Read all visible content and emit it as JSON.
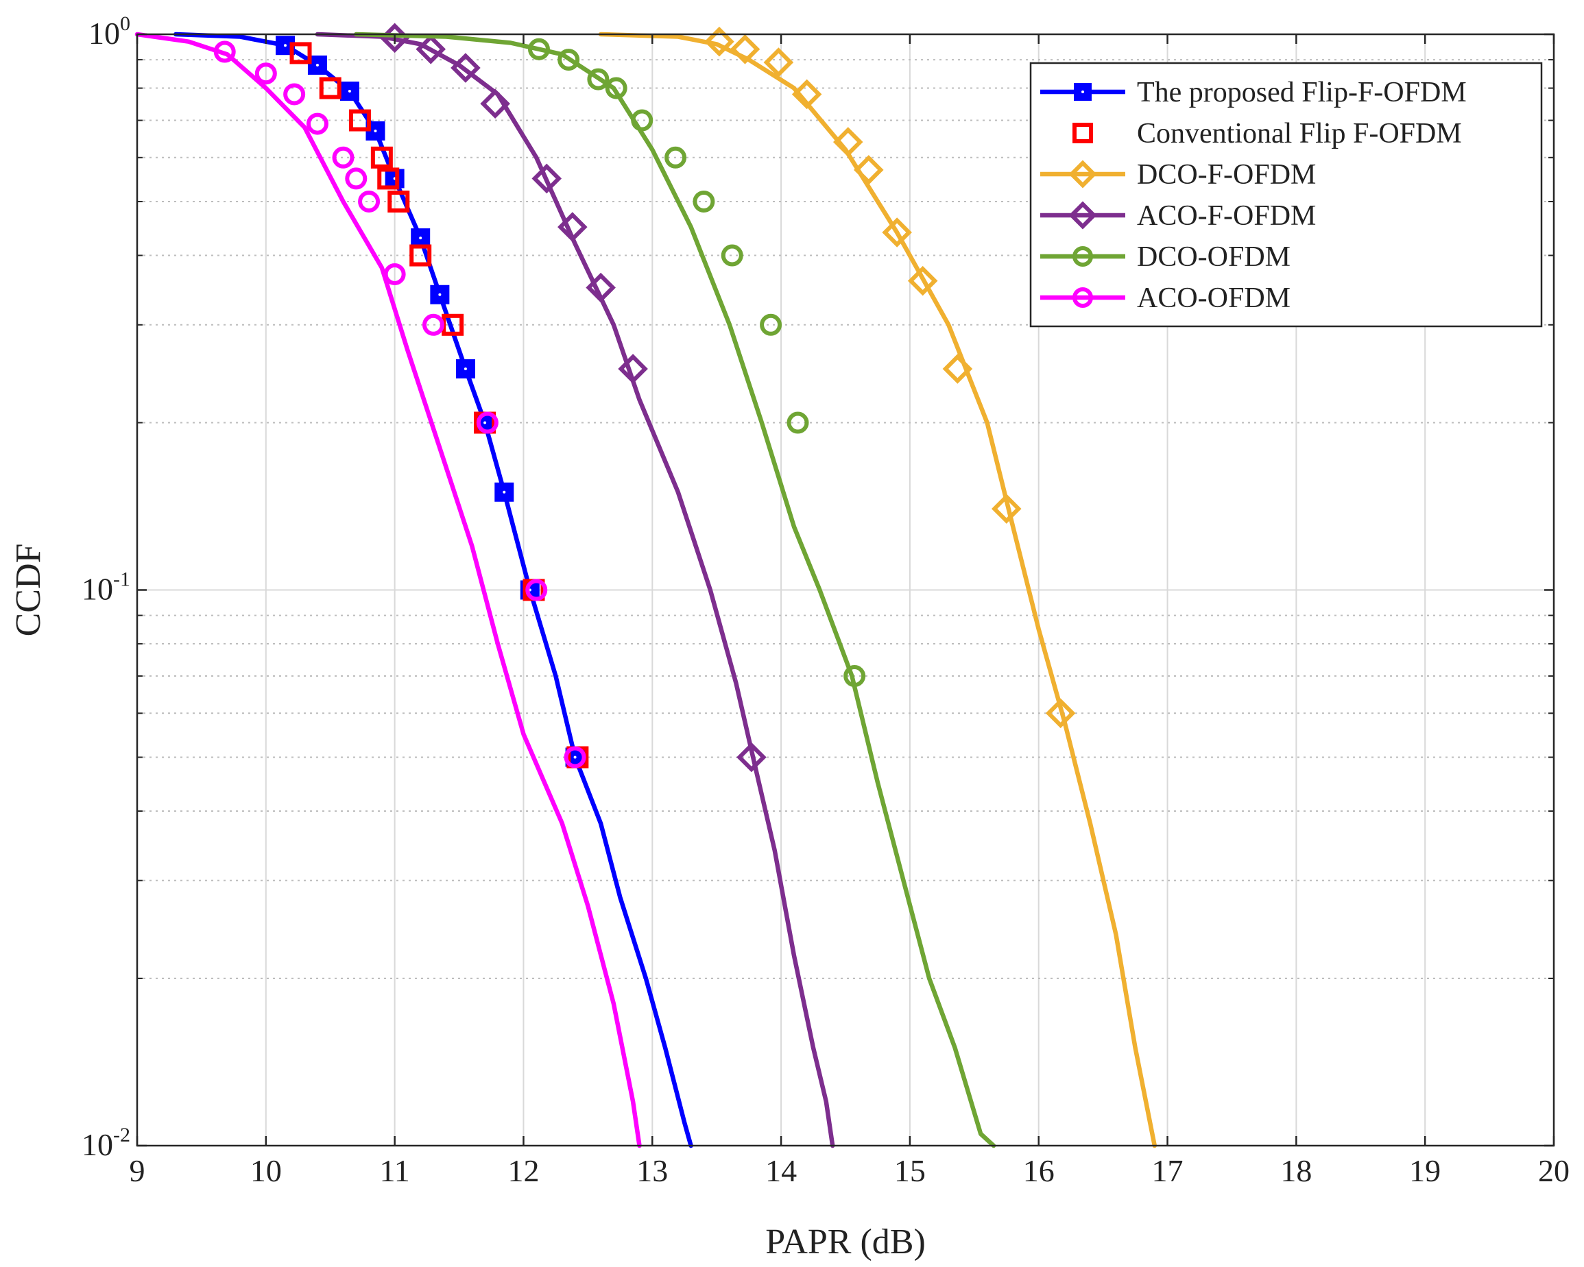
{
  "chart_data": {
    "type": "line",
    "title": "",
    "xlabel": "PAPR (dB)",
    "ylabel": "CCDF",
    "xlim": [
      9,
      20
    ],
    "ylim": [
      0.01,
      1
    ],
    "yscale": "log",
    "grid": true,
    "x_ticks": [
      "9",
      "10",
      "11",
      "12",
      "13",
      "14",
      "15",
      "16",
      "17",
      "18",
      "19",
      "20"
    ],
    "y_ticks": [
      {
        "value": 1,
        "base": "10",
        "exp": "0"
      },
      {
        "value": 0.1,
        "base": "10",
        "exp": "-1"
      },
      {
        "value": 0.01,
        "base": "10",
        "exp": "-2"
      }
    ],
    "legend_position": "top-right",
    "series": [
      {
        "name": "The proposed Flip-F-OFDM",
        "color": "#0000ff",
        "marker": "square",
        "line": true,
        "points": [
          [
            9.3,
            1.0
          ],
          [
            9.8,
            0.99
          ],
          [
            10.15,
            0.955
          ],
          [
            10.4,
            0.88
          ],
          [
            10.65,
            0.79
          ],
          [
            10.85,
            0.67
          ],
          [
            11.0,
            0.55
          ],
          [
            11.2,
            0.43
          ],
          [
            11.35,
            0.34
          ],
          [
            11.55,
            0.25
          ],
          [
            11.7,
            0.2
          ],
          [
            11.85,
            0.15
          ],
          [
            12.05,
            0.1
          ],
          [
            12.25,
            0.07
          ],
          [
            12.4,
            0.05
          ],
          [
            12.6,
            0.038
          ],
          [
            12.75,
            0.028
          ],
          [
            12.95,
            0.02
          ],
          [
            13.1,
            0.015
          ],
          [
            13.25,
            0.011
          ],
          [
            13.3,
            0.01
          ]
        ],
        "markers": [
          [
            10.15,
            0.955
          ],
          [
            10.4,
            0.88
          ],
          [
            10.65,
            0.79
          ],
          [
            10.85,
            0.67
          ],
          [
            11.0,
            0.55
          ],
          [
            11.2,
            0.43
          ],
          [
            11.35,
            0.34
          ],
          [
            11.55,
            0.25
          ],
          [
            11.7,
            0.2
          ],
          [
            11.85,
            0.15
          ],
          [
            12.05,
            0.1
          ],
          [
            12.4,
            0.05
          ]
        ]
      },
      {
        "name": "Conventional Flip F-OFDM",
        "color": "#ff0000",
        "marker": "square-open",
        "line": false,
        "points": [],
        "markers": [
          [
            10.27,
            0.925
          ],
          [
            10.5,
            0.8
          ],
          [
            10.73,
            0.7
          ],
          [
            10.9,
            0.6
          ],
          [
            10.95,
            0.55
          ],
          [
            11.03,
            0.5
          ],
          [
            11.2,
            0.4
          ],
          [
            11.45,
            0.3
          ],
          [
            11.7,
            0.2
          ],
          [
            12.08,
            0.1
          ],
          [
            12.42,
            0.05
          ]
        ]
      },
      {
        "name": "DCO-F-OFDM",
        "color": "#f0b030",
        "marker": "diamond",
        "line": true,
        "points": [
          [
            12.6,
            1.0
          ],
          [
            13.2,
            0.99
          ],
          [
            13.5,
            0.96
          ],
          [
            13.75,
            0.9
          ],
          [
            14.1,
            0.8
          ],
          [
            14.5,
            0.62
          ],
          [
            14.9,
            0.44
          ],
          [
            15.3,
            0.3
          ],
          [
            15.6,
            0.2
          ],
          [
            15.8,
            0.13
          ],
          [
            16.0,
            0.085
          ],
          [
            16.2,
            0.058
          ],
          [
            16.4,
            0.038
          ],
          [
            16.6,
            0.024
          ],
          [
            16.75,
            0.015
          ],
          [
            16.9,
            0.01
          ]
        ],
        "markers": [
          [
            13.52,
            0.97
          ],
          [
            13.72,
            0.94
          ],
          [
            13.98,
            0.89
          ],
          [
            14.2,
            0.78
          ],
          [
            14.52,
            0.64
          ],
          [
            14.68,
            0.57
          ],
          [
            14.9,
            0.44
          ],
          [
            15.1,
            0.36
          ],
          [
            15.37,
            0.25
          ],
          [
            15.75,
            0.14
          ],
          [
            16.17,
            0.06
          ]
        ]
      },
      {
        "name": "ACO-F-OFDM",
        "color": "#7d2e8e",
        "marker": "diamond",
        "line": true,
        "points": [
          [
            10.4,
            1.0
          ],
          [
            10.9,
            0.99
          ],
          [
            11.2,
            0.96
          ],
          [
            11.5,
            0.88
          ],
          [
            11.8,
            0.78
          ],
          [
            12.1,
            0.6
          ],
          [
            12.4,
            0.42
          ],
          [
            12.7,
            0.3
          ],
          [
            12.9,
            0.22
          ],
          [
            13.2,
            0.15
          ],
          [
            13.45,
            0.1
          ],
          [
            13.65,
            0.068
          ],
          [
            13.8,
            0.048
          ],
          [
            13.95,
            0.034
          ],
          [
            14.1,
            0.022
          ],
          [
            14.25,
            0.015
          ],
          [
            14.35,
            0.012
          ],
          [
            14.4,
            0.01
          ]
        ],
        "markers": [
          [
            11.0,
            0.985
          ],
          [
            11.28,
            0.94
          ],
          [
            11.55,
            0.87
          ],
          [
            11.78,
            0.75
          ],
          [
            12.18,
            0.55
          ],
          [
            12.38,
            0.45
          ],
          [
            12.6,
            0.35
          ],
          [
            12.85,
            0.25
          ],
          [
            13.77,
            0.05
          ]
        ]
      },
      {
        "name": "DCO-OFDM",
        "color": "#6fa534",
        "marker": "circle",
        "line": true,
        "points": [
          [
            10.7,
            1.0
          ],
          [
            11.4,
            0.99
          ],
          [
            11.9,
            0.965
          ],
          [
            12.3,
            0.92
          ],
          [
            12.7,
            0.8
          ],
          [
            13.0,
            0.62
          ],
          [
            13.3,
            0.45
          ],
          [
            13.6,
            0.3
          ],
          [
            13.85,
            0.2
          ],
          [
            14.1,
            0.13
          ],
          [
            14.3,
            0.1
          ],
          [
            14.55,
            0.07
          ],
          [
            14.75,
            0.045
          ],
          [
            14.95,
            0.03
          ],
          [
            15.15,
            0.02
          ],
          [
            15.35,
            0.015
          ],
          [
            15.55,
            0.0105
          ],
          [
            15.65,
            0.01
          ]
        ],
        "markers": [
          [
            12.12,
            0.94
          ],
          [
            12.35,
            0.9
          ],
          [
            12.58,
            0.83
          ],
          [
            12.72,
            0.8
          ],
          [
            12.92,
            0.7
          ],
          [
            13.18,
            0.6
          ],
          [
            13.4,
            0.5
          ],
          [
            13.62,
            0.4
          ],
          [
            13.92,
            0.3
          ],
          [
            14.13,
            0.2
          ],
          [
            14.57,
            0.07
          ]
        ]
      },
      {
        "name": "ACO-OFDM",
        "color": "#ff00ff",
        "marker": "circle",
        "line": true,
        "points": [
          [
            9.0,
            1.0
          ],
          [
            9.4,
            0.97
          ],
          [
            9.7,
            0.92
          ],
          [
            10.0,
            0.8
          ],
          [
            10.3,
            0.68
          ],
          [
            10.6,
            0.5
          ],
          [
            10.9,
            0.38
          ],
          [
            11.1,
            0.27
          ],
          [
            11.35,
            0.18
          ],
          [
            11.6,
            0.12
          ],
          [
            11.8,
            0.08
          ],
          [
            12.0,
            0.055
          ],
          [
            12.3,
            0.038
          ],
          [
            12.5,
            0.027
          ],
          [
            12.7,
            0.018
          ],
          [
            12.85,
            0.012
          ],
          [
            12.9,
            0.01
          ]
        ],
        "markers": [
          [
            9.68,
            0.93
          ],
          [
            10.0,
            0.85
          ],
          [
            10.22,
            0.78
          ],
          [
            10.4,
            0.69
          ],
          [
            10.6,
            0.6
          ],
          [
            10.7,
            0.55
          ],
          [
            10.8,
            0.5
          ],
          [
            11.0,
            0.37
          ],
          [
            11.3,
            0.3
          ],
          [
            11.72,
            0.2
          ],
          [
            12.1,
            0.1
          ],
          [
            12.4,
            0.05
          ]
        ]
      }
    ]
  }
}
